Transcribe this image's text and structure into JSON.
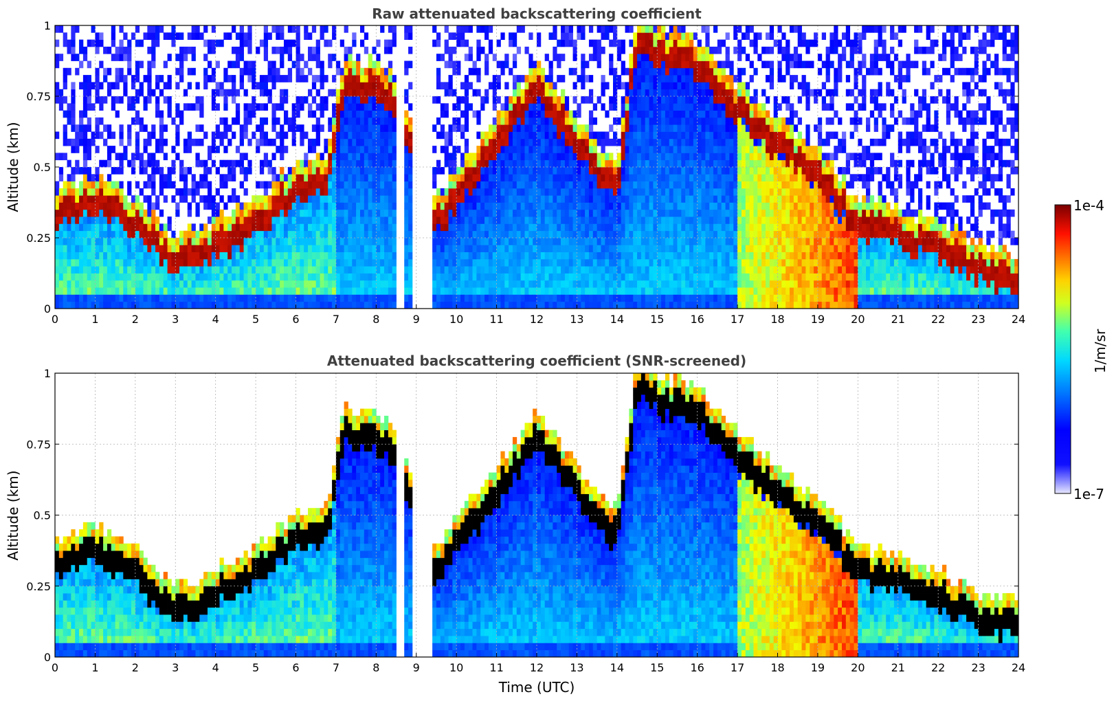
{
  "chart_data": [
    {
      "type": "heatmap",
      "title": "Raw attenuated backscattering coefficient",
      "xlabel": "",
      "ylabel": "Altitude (km)",
      "xlim": [
        0,
        24
      ],
      "ylim": [
        0,
        1
      ],
      "xticks": [
        "0",
        "1",
        "2",
        "3",
        "4",
        "5",
        "6",
        "7",
        "8",
        "9",
        "10",
        "11",
        "12",
        "13",
        "14",
        "15",
        "16",
        "17",
        "18",
        "19",
        "20",
        "21",
        "22",
        "23",
        "24"
      ],
      "yticks": [
        "0",
        "0.25",
        "0.5",
        "0.75",
        "1"
      ],
      "grid": true,
      "gaps_utc": [
        [
          8.55,
          8.68
        ],
        [
          8.88,
          9.45
        ]
      ],
      "layer_top_km": [
        [
          0,
          0.33
        ],
        [
          1,
          0.38
        ],
        [
          2,
          0.3
        ],
        [
          3,
          0.15
        ],
        [
          4,
          0.22
        ],
        [
          5,
          0.3
        ],
        [
          6,
          0.42
        ],
        [
          6.8,
          0.45
        ],
        [
          7.2,
          0.8
        ],
        [
          8,
          0.78
        ],
        [
          8.5,
          0.72
        ],
        [
          9.5,
          0.3
        ],
        [
          11,
          0.58
        ],
        [
          12,
          0.78
        ],
        [
          13,
          0.58
        ],
        [
          14,
          0.42
        ],
        [
          14.5,
          0.95
        ],
        [
          15,
          0.9
        ],
        [
          16,
          0.86
        ],
        [
          17,
          0.7
        ],
        [
          18,
          0.58
        ],
        [
          19,
          0.48
        ],
        [
          20,
          0.3
        ],
        [
          21,
          0.26
        ],
        [
          22,
          0.22
        ],
        [
          23,
          0.14
        ],
        [
          24,
          0.1
        ]
      ]
    },
    {
      "type": "heatmap",
      "title": "Attenuated backscattering coefficient (SNR-screened)",
      "xlabel": "Time (UTC)",
      "ylabel": "Altitude (km)",
      "xlim": [
        0,
        24
      ],
      "ylim": [
        0,
        1
      ],
      "xticks": [
        "0",
        "1",
        "2",
        "3",
        "4",
        "5",
        "6",
        "7",
        "8",
        "9",
        "10",
        "11",
        "12",
        "13",
        "14",
        "15",
        "16",
        "17",
        "18",
        "19",
        "20",
        "21",
        "22",
        "23",
        "24"
      ],
      "yticks": [
        "0",
        "0.25",
        "0.5",
        "0.75",
        "1"
      ],
      "grid": true,
      "gaps_utc": [
        [
          8.55,
          8.68
        ],
        [
          8.88,
          9.45
        ]
      ],
      "saturated_color": "#000000"
    }
  ],
  "colorbar": {
    "label": "1/m/sr",
    "max_label": "1e-4",
    "min_label": "1e-7",
    "scale": "log",
    "colormap": "jet"
  }
}
